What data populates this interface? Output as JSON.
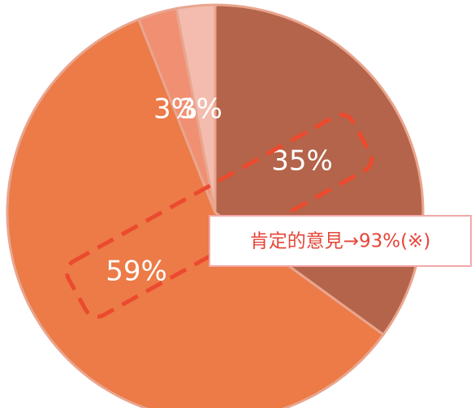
{
  "chart_data": {
    "type": "pie",
    "values": [
      35,
      59,
      3,
      3
    ],
    "value_labels": [
      "35%",
      "59%",
      "3%",
      "3%"
    ],
    "colors": [
      "#b4644a",
      "#ec7b47",
      "#f08f72",
      "#f3bcae"
    ],
    "annotation": "肯定的意見→93%(※)"
  }
}
